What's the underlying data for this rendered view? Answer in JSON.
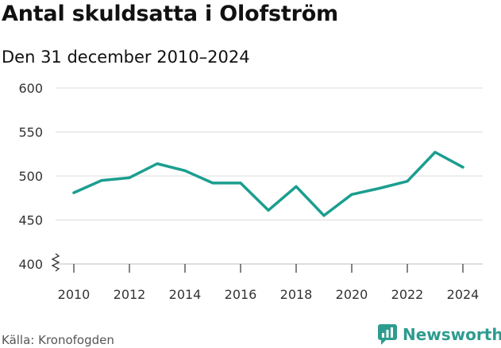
{
  "title": "Antal skuldsatta i Olofström",
  "subtitle": "Den 31 december 2010–2024",
  "source": "Källa: Kronofogden",
  "brand": {
    "name": "Newsworthy",
    "icon": "newsworthy-logo-icon",
    "color": "#2d9c8f"
  },
  "chart_data": {
    "type": "line",
    "title": "Antal skuldsatta i Olofström",
    "subtitle": "Den 31 december 2010–2024",
    "xlabel": "",
    "ylabel": "",
    "x": [
      2010,
      2011,
      2012,
      2013,
      2014,
      2015,
      2016,
      2017,
      2018,
      2019,
      2020,
      2021,
      2022,
      2023,
      2024
    ],
    "series": [
      {
        "name": "Antal skuldsatta",
        "values": [
          481,
          495,
          498,
          514,
          506,
          492,
          492,
          461,
          488,
          455,
          479,
          486,
          494,
          527,
          510
        ],
        "color": "#1a9e8f"
      }
    ],
    "ylim": [
      400,
      600
    ],
    "yticks": [
      400,
      450,
      500,
      550,
      600
    ],
    "xticks": [
      2010,
      2012,
      2014,
      2016,
      2018,
      2020,
      2022,
      2024
    ],
    "grid": true,
    "axis_break": true
  }
}
